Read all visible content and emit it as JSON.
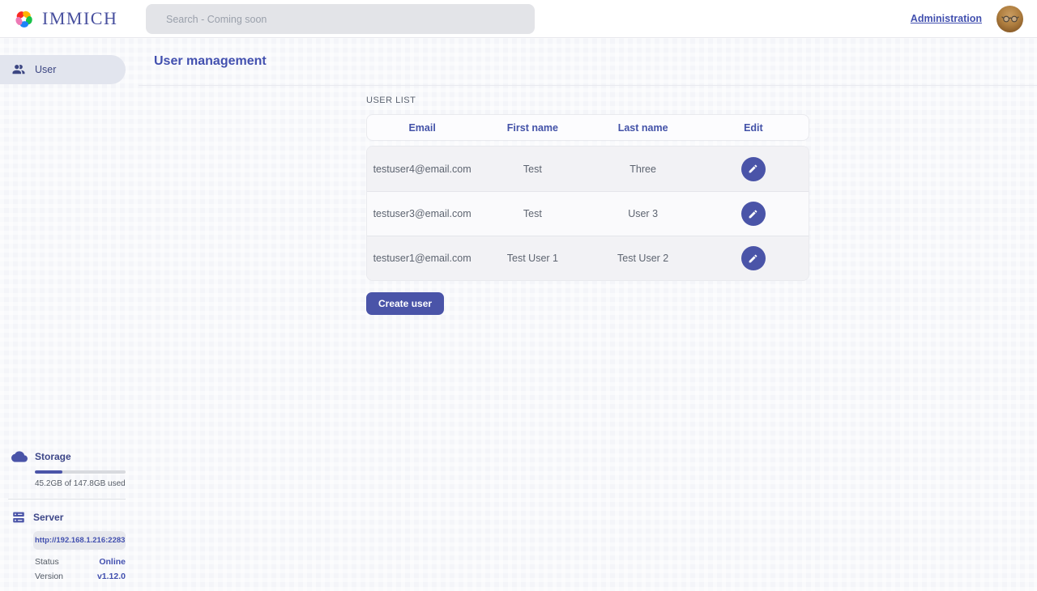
{
  "app": {
    "name": "IMMICH"
  },
  "topbar": {
    "search_placeholder": "Search - Coming soon",
    "admin_link": "Administration"
  },
  "sidebar": {
    "items": [
      {
        "label": "User"
      }
    ],
    "storage": {
      "title": "Storage",
      "percent_used": 30.6,
      "usage_text": "45.2GB of 147.8GB used"
    },
    "server": {
      "title": "Server",
      "url": "http://192.168.1.216:2283",
      "status_label": "Status",
      "status_value": "Online",
      "version_label": "Version",
      "version_value": "v1.12.0"
    }
  },
  "main": {
    "title": "User management",
    "section_label": "USER LIST",
    "table": {
      "headers": [
        "Email",
        "First name",
        "Last name",
        "Edit"
      ],
      "rows": [
        {
          "email": "testuser4@email.com",
          "first_name": "Test",
          "last_name": "Three"
        },
        {
          "email": "testuser3@email.com",
          "first_name": "Test",
          "last_name": "User 3"
        },
        {
          "email": "testuser1@email.com",
          "first_name": "Test User 1",
          "last_name": "Test User 2"
        }
      ]
    },
    "create_button": "Create user"
  },
  "colors": {
    "accent": "#4250af",
    "primary_button": "#4a54a8",
    "online_status": "#4250af",
    "logo_petals": [
      "#fa2921",
      "#ffb400",
      "#18c249",
      "#1e83f7",
      "#ed79b5"
    ]
  }
}
